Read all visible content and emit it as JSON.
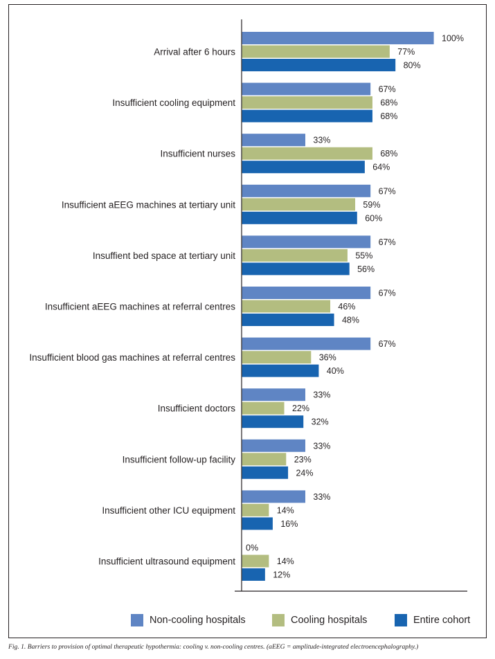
{
  "chart_data": {
    "type": "bar",
    "orientation": "horizontal",
    "title": "",
    "xlabel": "",
    "ylabel": "",
    "xlim": [
      0,
      100
    ],
    "grid": false,
    "legend_position": "bottom",
    "value_format": "percent",
    "categories": [
      "Arrival after 6 hours",
      "Insufficient cooling equipment",
      "Insufficient nurses",
      "Insufficient aEEG machines at tertiary unit",
      "Insuffient bed space at tertiary unit",
      "Insufficient aEEG machines at referral centres",
      "Insufficient blood gas machines at referral centres",
      "Insufficient doctors",
      "Insufficient follow-up facility",
      "Insufficient other ICU equipment",
      "Insufficient ultrasound equipment"
    ],
    "series": [
      {
        "name": "Non-cooling hospitals",
        "color": "#5f85c4",
        "values": [
          100,
          67,
          33,
          67,
          67,
          67,
          67,
          33,
          33,
          33,
          0
        ]
      },
      {
        "name": "Cooling hospitals",
        "color": "#b3bd80",
        "values": [
          77,
          68,
          68,
          59,
          55,
          46,
          36,
          22,
          23,
          14,
          14
        ]
      },
      {
        "name": "Entire cohort",
        "color": "#1864b0",
        "values": [
          80,
          68,
          64,
          60,
          56,
          48,
          40,
          32,
          24,
          16,
          12
        ]
      }
    ]
  },
  "caption": "Fig. 1. Barriers to provision of optimal therapeutic hypothermia: cooling v. non-cooling centres. (aEEG = amplitude-integrated electroencephalography.)"
}
